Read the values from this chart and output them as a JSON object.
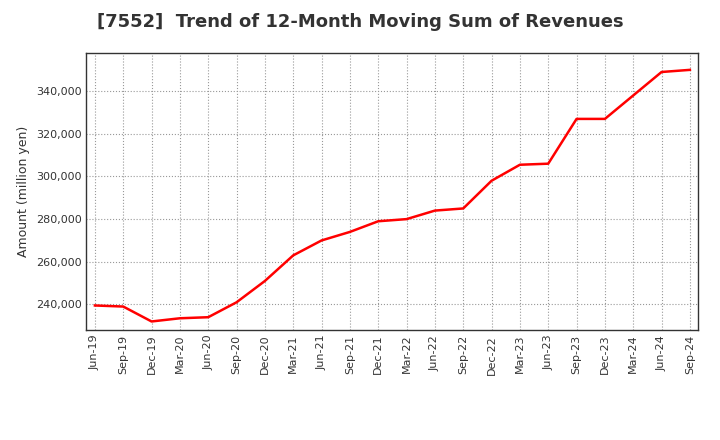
{
  "title": "[7552]  Trend of 12-Month Moving Sum of Revenues",
  "ylabel": "Amount (million yen)",
  "line_color": "#ff0000",
  "background_color": "#ffffff",
  "plot_background": "#ffffff",
  "grid_color": "#999999",
  "ylim": [
    228000,
    358000
  ],
  "yticks": [
    240000,
    260000,
    280000,
    300000,
    320000,
    340000
  ],
  "x_labels": [
    "Jun-19",
    "Sep-19",
    "Dec-19",
    "Mar-20",
    "Jun-20",
    "Sep-20",
    "Dec-20",
    "Mar-21",
    "Jun-21",
    "Sep-21",
    "Dec-21",
    "Mar-22",
    "Jun-22",
    "Sep-22",
    "Dec-22",
    "Mar-23",
    "Jun-23",
    "Sep-23",
    "Dec-23",
    "Mar-24",
    "Jun-24",
    "Sep-24"
  ],
  "values": [
    239500,
    239000,
    232000,
    233500,
    234000,
    241000,
    251000,
    263000,
    270000,
    274000,
    279000,
    280000,
    284000,
    285000,
    298000,
    305500,
    306000,
    327000,
    327000,
    338000,
    349000,
    350000
  ],
  "title_fontsize": 13,
  "axis_fontsize": 9,
  "tick_fontsize": 8,
  "line_width": 1.8,
  "title_color": "#333333",
  "tick_color": "#333333",
  "spine_color": "#333333"
}
